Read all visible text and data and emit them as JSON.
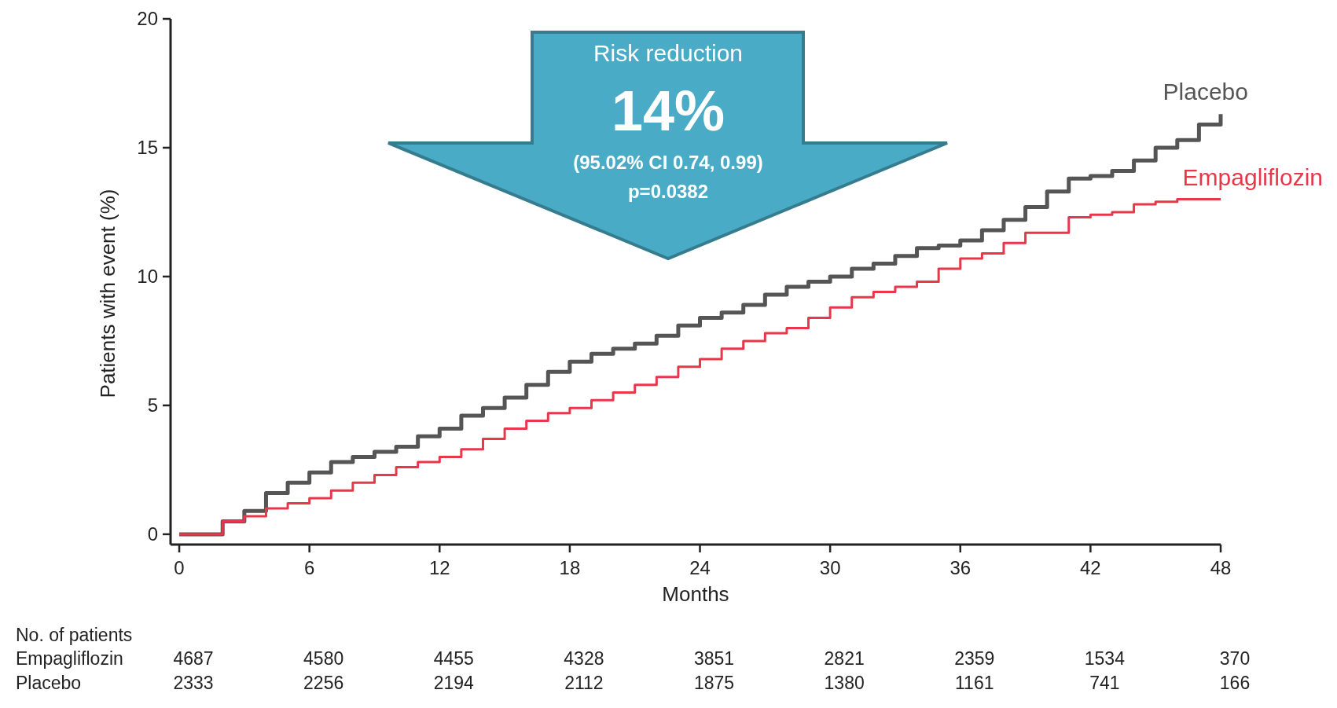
{
  "chart_data": {
    "type": "step",
    "ylabel": "Patients with event (%)",
    "xlabel": "Months",
    "x": [
      0,
      2,
      3,
      4,
      5,
      6,
      7,
      8,
      9,
      10,
      11,
      12,
      13,
      14,
      15,
      16,
      17,
      18,
      19,
      20,
      21,
      22,
      23,
      24,
      25,
      26,
      27,
      28,
      29,
      30,
      31,
      32,
      33,
      34,
      35,
      36,
      37,
      38,
      39,
      40,
      41,
      42,
      43,
      44,
      45,
      46,
      47,
      48
    ],
    "xlim": [
      -0.4,
      48
    ],
    "xticks": [
      0,
      6,
      12,
      18,
      24,
      30,
      36,
      42,
      48
    ],
    "ylim": [
      -0.4,
      20
    ],
    "yticks": [
      0,
      5,
      10,
      15,
      20
    ],
    "series": [
      {
        "name": "Placebo",
        "color": "#555555",
        "values": [
          0,
          0.5,
          0.9,
          1.6,
          2.0,
          2.4,
          2.8,
          3.0,
          3.2,
          3.4,
          3.8,
          4.1,
          4.6,
          4.9,
          5.3,
          5.8,
          6.3,
          6.7,
          7.0,
          7.2,
          7.4,
          7.7,
          8.1,
          8.4,
          8.6,
          8.9,
          9.3,
          9.6,
          9.8,
          10.0,
          10.3,
          10.5,
          10.8,
          11.1,
          11.2,
          11.4,
          11.8,
          12.2,
          12.7,
          13.3,
          13.8,
          13.9,
          14.1,
          14.5,
          15.0,
          15.3,
          15.9,
          16.3
        ]
      },
      {
        "name": "Empagliflozin",
        "color": "#e8364a",
        "values": [
          0,
          0.5,
          0.7,
          1.0,
          1.2,
          1.4,
          1.7,
          2.0,
          2.3,
          2.6,
          2.8,
          3.0,
          3.3,
          3.7,
          4.1,
          4.4,
          4.7,
          4.9,
          5.2,
          5.5,
          5.8,
          6.1,
          6.5,
          6.8,
          7.2,
          7.5,
          7.8,
          8.0,
          8.4,
          8.8,
          9.2,
          9.4,
          9.6,
          9.8,
          10.3,
          10.7,
          10.9,
          11.3,
          11.7,
          11.7,
          12.3,
          12.4,
          12.5,
          12.8,
          12.9,
          13.0,
          13.0,
          13.0
        ]
      }
    ],
    "annotations": [
      "Risk reduction",
      "14%",
      "(95.02% CI 0.74, 0.99)",
      "p=0.0382",
      "No. of patients",
      "Empagliflozin",
      "4687",
      "4580",
      "4455",
      "4328",
      "3851",
      "2821",
      "2359",
      "1534",
      "370",
      "Placebo",
      "2333",
      "2256",
      "2194",
      "2112",
      "1875",
      "1380",
      "1161",
      "741",
      "166"
    ],
    "grid": false,
    "legend": false
  }
}
